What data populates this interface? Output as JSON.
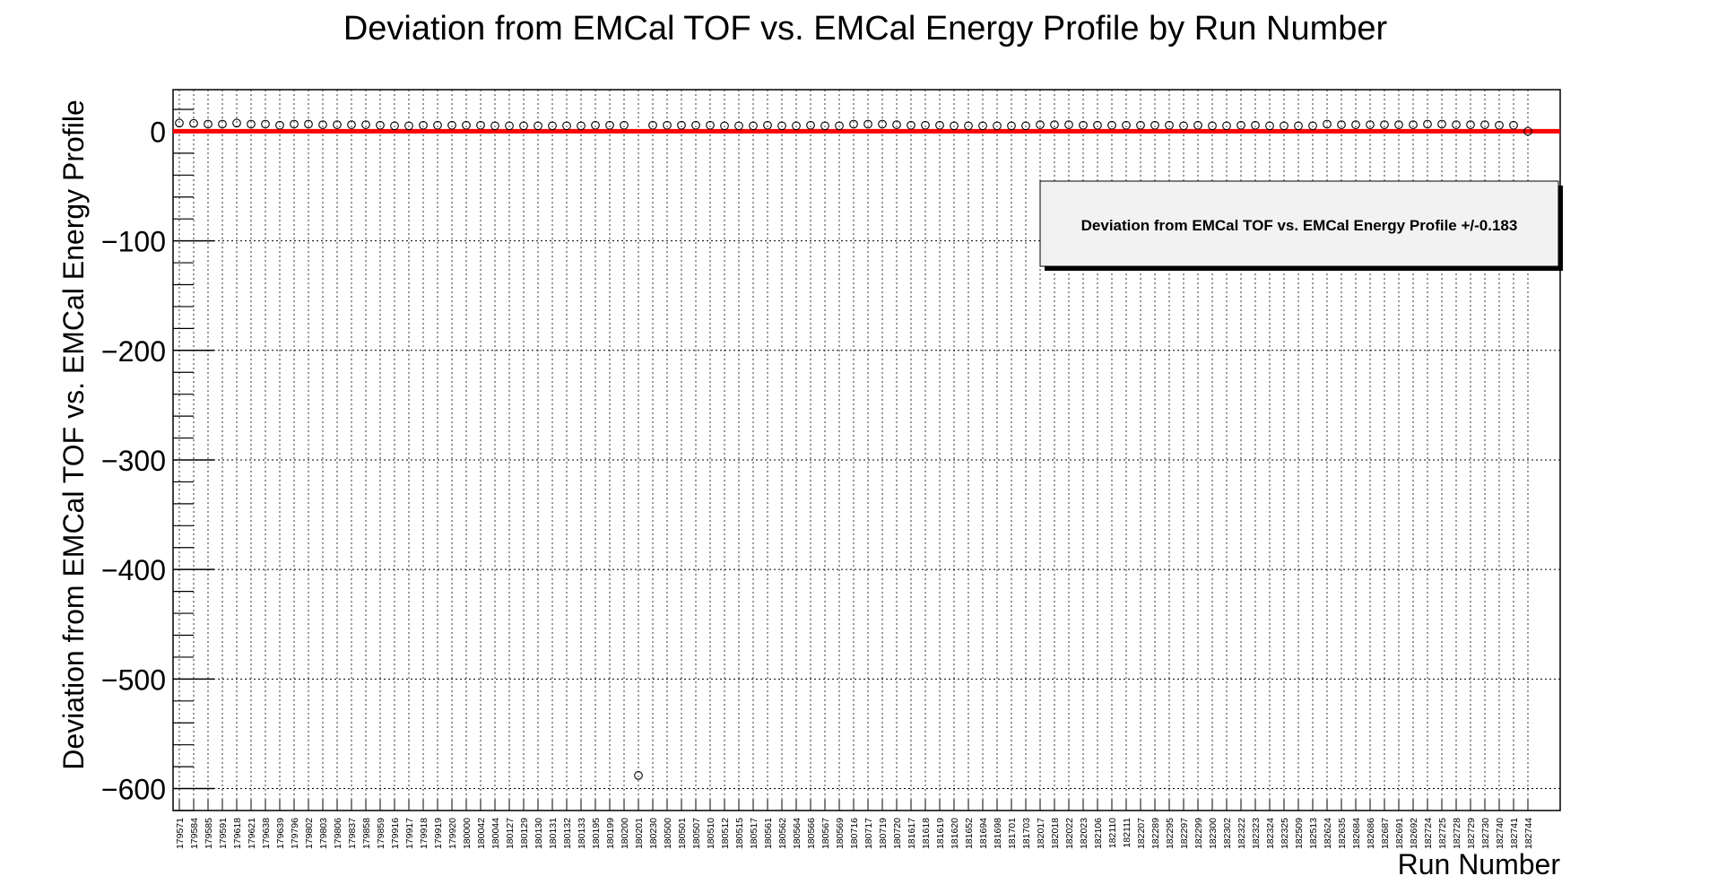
{
  "chart_data": {
    "type": "scatter",
    "title": "Deviation from EMCal TOF vs. EMCal Energy Profile by Run Number",
    "xlabel": "Run Number",
    "ylabel": "Deviation from EMCal TOF vs. EMCal Energy Profile",
    "ylim": [
      -620,
      38
    ],
    "yticks": [
      0,
      -100,
      -200,
      -300,
      -400,
      -500,
      -600
    ],
    "ytick_labels": [
      "0",
      "−100",
      "−200",
      "−300",
      "−400",
      "−500",
      "−600"
    ],
    "grid": true,
    "legend_position": "top-right",
    "legend_text": "Deviation from EMCal TOF vs. EMCal Energy Profile +/-0.183",
    "reference_line": {
      "y": 0,
      "color": "#ff0000"
    },
    "marker_color": "#000000",
    "categories": [
      "179571",
      "179584",
      "179585",
      "179591",
      "179618",
      "179621",
      "179638",
      "179639",
      "179796",
      "179802",
      "179803",
      "179806",
      "179837",
      "179858",
      "179859",
      "179916",
      "179917",
      "179918",
      "179919",
      "179920",
      "180000",
      "180042",
      "180044",
      "180127",
      "180129",
      "180130",
      "180131",
      "180132",
      "180133",
      "180195",
      "180199",
      "180200",
      "180201",
      "180230",
      "180500",
      "180501",
      "180507",
      "180510",
      "180512",
      "180515",
      "180517",
      "180561",
      "180562",
      "180564",
      "180566",
      "180567",
      "180569",
      "180716",
      "180717",
      "180719",
      "180720",
      "181617",
      "181618",
      "181619",
      "181620",
      "181652",
      "181694",
      "181698",
      "181701",
      "181703",
      "182017",
      "182018",
      "182022",
      "182023",
      "182106",
      "182110",
      "182111",
      "182207",
      "182289",
      "182295",
      "182297",
      "182299",
      "182300",
      "182302",
      "182322",
      "182323",
      "182324",
      "182325",
      "182509",
      "182513",
      "182624",
      "182635",
      "182684",
      "182686",
      "182687",
      "182691",
      "182692",
      "182724",
      "182725",
      "182728",
      "182729",
      "182730",
      "182740",
      "182741",
      "182744"
    ],
    "values": [
      7.5,
      7.2,
      6.5,
      6.5,
      7.5,
      6.5,
      6.5,
      5.5,
      6.5,
      6.5,
      6.0,
      6.0,
      6.0,
      6.0,
      5.5,
      5.0,
      5.0,
      5.5,
      5.5,
      5.5,
      5.5,
      5.5,
      5.0,
      5.0,
      5.0,
      5.0,
      5.0,
      5.0,
      5.0,
      5.5,
      5.5,
      5.5,
      -588.0,
      5.5,
      5.5,
      5.5,
      5.5,
      5.5,
      5.0,
      5.0,
      5.0,
      5.5,
      5.0,
      5.0,
      5.5,
      5.0,
      5.0,
      6.5,
      6.5,
      6.5,
      6.0,
      5.5,
      5.5,
      5.5,
      5.0,
      5.0,
      5.0,
      5.0,
      5.0,
      5.0,
      6.0,
      6.0,
      6.0,
      5.5,
      5.5,
      5.5,
      5.5,
      5.5,
      5.5,
      5.5,
      5.0,
      5.5,
      5.0,
      5.0,
      5.5,
      5.5,
      5.0,
      5.0,
      5.0,
      5.0,
      6.5,
      6.0,
      6.0,
      6.0,
      6.0,
      6.0,
      6.0,
      6.5,
      6.5,
      6.0,
      6.0,
      6.0,
      5.5,
      5.5,
      0.0
    ]
  }
}
